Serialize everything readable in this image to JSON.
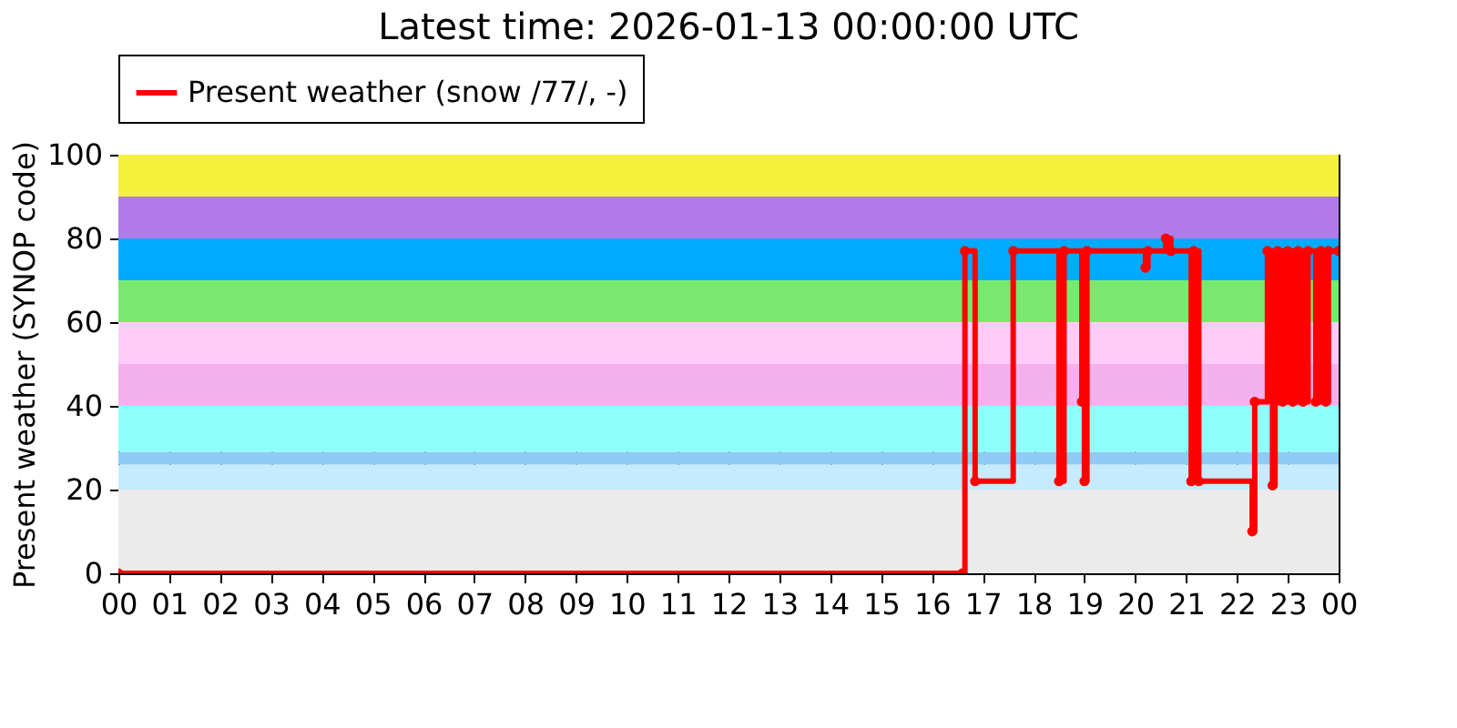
{
  "chart_data": {
    "type": "step",
    "title": "Latest time: 2026-01-13 00:00:00 UTC",
    "ylabel": "Present weather (SYNOP code)",
    "xlim": [
      0,
      24
    ],
    "ylim": [
      0,
      100
    ],
    "xticks": [
      {
        "value": 0,
        "label": "00"
      },
      {
        "value": 1,
        "label": "01"
      },
      {
        "value": 2,
        "label": "02"
      },
      {
        "value": 3,
        "label": "03"
      },
      {
        "value": 4,
        "label": "04"
      },
      {
        "value": 5,
        "label": "05"
      },
      {
        "value": 6,
        "label": "06"
      },
      {
        "value": 7,
        "label": "07"
      },
      {
        "value": 8,
        "label": "08"
      },
      {
        "value": 9,
        "label": "09"
      },
      {
        "value": 10,
        "label": "10"
      },
      {
        "value": 11,
        "label": "11"
      },
      {
        "value": 12,
        "label": "12"
      },
      {
        "value": 13,
        "label": "13"
      },
      {
        "value": 14,
        "label": "14"
      },
      {
        "value": 15,
        "label": "15"
      },
      {
        "value": 16,
        "label": "16"
      },
      {
        "value": 17,
        "label": "17"
      },
      {
        "value": 18,
        "label": "18"
      },
      {
        "value": 19,
        "label": "19"
      },
      {
        "value": 20,
        "label": "20"
      },
      {
        "value": 21,
        "label": "21"
      },
      {
        "value": 22,
        "label": "22"
      },
      {
        "value": 23,
        "label": "23"
      },
      {
        "value": 24,
        "label": "00"
      }
    ],
    "yticks": [
      0,
      20,
      40,
      60,
      80,
      100
    ],
    "grid": true,
    "legend": "top",
    "marker": "circle",
    "line_style": "solid",
    "bands": [
      {
        "axis": "y",
        "from": 0,
        "to": 20,
        "color": "#ebebeb"
      },
      {
        "axis": "y",
        "from": 20,
        "to": 26,
        "color": "#c6ebff"
      },
      {
        "axis": "y",
        "from": 26,
        "to": 29,
        "color": "#8fcbf5"
      },
      {
        "axis": "y",
        "from": 29,
        "to": 40,
        "color": "#8ffffc"
      },
      {
        "axis": "y",
        "from": 40,
        "to": 50,
        "color": "#f5b0ee"
      },
      {
        "axis": "y",
        "from": 50,
        "to": 60,
        "color": "#ffccf7"
      },
      {
        "axis": "y",
        "from": 60,
        "to": 70,
        "color": "#7ae86e"
      },
      {
        "axis": "y",
        "from": 70,
        "to": 80,
        "color": "#00aaff"
      },
      {
        "axis": "y",
        "from": 80,
        "to": 90,
        "color": "#b07ae8"
      },
      {
        "axis": "y",
        "from": 90,
        "to": 100,
        "color": "#f5f03c"
      }
    ],
    "series": [
      {
        "name": "Present weather (snow /77/, -)",
        "color": "#ff0000",
        "x": [
          0,
          16.6,
          16.65,
          16.85,
          17.6,
          18.5,
          18.6,
          18.95,
          19.0,
          19.05,
          20.2,
          20.25,
          20.6,
          20.7,
          21.1,
          21.15,
          21.25,
          22.3,
          22.35,
          22.6,
          22.7,
          22.75,
          22.8,
          22.9,
          23.0,
          23.1,
          23.2,
          23.3,
          23.4,
          23.55,
          23.65,
          23.75,
          23.8,
          24.0
        ],
        "values": [
          0,
          0,
          77,
          22,
          77,
          22,
          77,
          41,
          22,
          77,
          73,
          77,
          80,
          77,
          22,
          77,
          22,
          10,
          41,
          77,
          21,
          41,
          77,
          41,
          77,
          41,
          77,
          41,
          77,
          41,
          77,
          41,
          77,
          77
        ]
      }
    ]
  }
}
